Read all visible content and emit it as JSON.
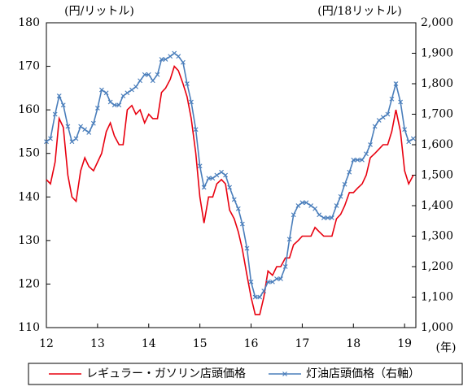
{
  "chart_data": {
    "type": "line",
    "y_label": "(円/リットル)",
    "y2_label": "(円/18リットル)",
    "x_unit_label": "(年)",
    "x": [
      12,
      12.08,
      12.17,
      12.25,
      12.33,
      12.42,
      12.5,
      12.58,
      12.67,
      12.75,
      12.83,
      12.92,
      13,
      13.08,
      13.17,
      13.25,
      13.33,
      13.42,
      13.5,
      13.58,
      13.67,
      13.75,
      13.83,
      13.92,
      14,
      14.08,
      14.17,
      14.25,
      14.33,
      14.42,
      14.5,
      14.58,
      14.67,
      14.75,
      14.83,
      14.92,
      15,
      15.08,
      15.17,
      15.25,
      15.33,
      15.42,
      15.5,
      15.58,
      15.67,
      15.75,
      15.83,
      15.92,
      16,
      16.08,
      16.17,
      16.25,
      16.33,
      16.42,
      16.5,
      16.58,
      16.67,
      16.75,
      16.83,
      16.92,
      17,
      17.08,
      17.17,
      17.25,
      17.33,
      17.42,
      17.5,
      17.58,
      17.67,
      17.75,
      17.83,
      17.92,
      18,
      18.08,
      18.17,
      18.25,
      18.33,
      18.42,
      18.5,
      18.58,
      18.67,
      18.75,
      18.83,
      18.92,
      19,
      19.08,
      19.17
    ],
    "series": [
      {
        "name": "レギュラー・ガソリン店頭価格",
        "color": "#e8000f",
        "axis": "y",
        "values": [
          144,
          143,
          148,
          158,
          156,
          145,
          140,
          139,
          146,
          149,
          147,
          146,
          148,
          150,
          155,
          157,
          154,
          152,
          152,
          160,
          161,
          159,
          160,
          157,
          159,
          158,
          158,
          164,
          165,
          167,
          170,
          169,
          166,
          163,
          158,
          150,
          140,
          134,
          140,
          140,
          143,
          144,
          143,
          137,
          135,
          132,
          128,
          122,
          117,
          113,
          113,
          117,
          123,
          122,
          124,
          124,
          126,
          126,
          129,
          130,
          131,
          131,
          131,
          133,
          132,
          131,
          131,
          131,
          135,
          136,
          138,
          141,
          141,
          142,
          143,
          145,
          149,
          150,
          151,
          152,
          152,
          155,
          160,
          155,
          146,
          143,
          145
        ]
      },
      {
        "name": "灯油店頭価格（右軸）",
        "color": "#4a7ebb",
        "axis": "y2",
        "values": [
          1610,
          1620,
          1700,
          1760,
          1730,
          1660,
          1610,
          1620,
          1660,
          1650,
          1640,
          1670,
          1720,
          1780,
          1770,
          1740,
          1730,
          1730,
          1760,
          1770,
          1780,
          1790,
          1810,
          1830,
          1830,
          1810,
          1830,
          1880,
          1880,
          1890,
          1900,
          1890,
          1870,
          1800,
          1740,
          1650,
          1530,
          1460,
          1490,
          1490,
          1500,
          1510,
          1500,
          1460,
          1420,
          1390,
          1340,
          1260,
          1150,
          1100,
          1100,
          1120,
          1150,
          1150,
          1160,
          1160,
          1200,
          1290,
          1370,
          1400,
          1410,
          1410,
          1400,
          1390,
          1370,
          1360,
          1360,
          1360,
          1400,
          1430,
          1470,
          1510,
          1550,
          1550,
          1550,
          1570,
          1600,
          1660,
          1680,
          1690,
          1700,
          1750,
          1800,
          1740,
          1650,
          1610,
          1620
        ]
      }
    ],
    "xlim": [
      12,
      19.22
    ],
    "xticks": [
      12,
      13,
      14,
      15,
      16,
      17,
      18,
      19
    ],
    "ylim": [
      110,
      180
    ],
    "yticks": [
      110,
      120,
      130,
      140,
      150,
      160,
      170,
      180
    ],
    "y2lim": [
      1000,
      2000
    ],
    "y2ticks": [
      {
        "value": 1000,
        "label": "1,000"
      },
      {
        "value": 1100,
        "label": "1,100"
      },
      {
        "value": 1200,
        "label": "1,200"
      },
      {
        "value": 1300,
        "label": "1,300"
      },
      {
        "value": 1400,
        "label": "1,400"
      },
      {
        "value": 1500,
        "label": "1,500"
      },
      {
        "value": 1600,
        "label": "1,600"
      },
      {
        "value": 1700,
        "label": "1,700"
      },
      {
        "value": 1800,
        "label": "1,800"
      },
      {
        "value": 1900,
        "label": "1,900"
      },
      {
        "value": 2000,
        "label": "2,000"
      }
    ],
    "legend": "bottom"
  }
}
